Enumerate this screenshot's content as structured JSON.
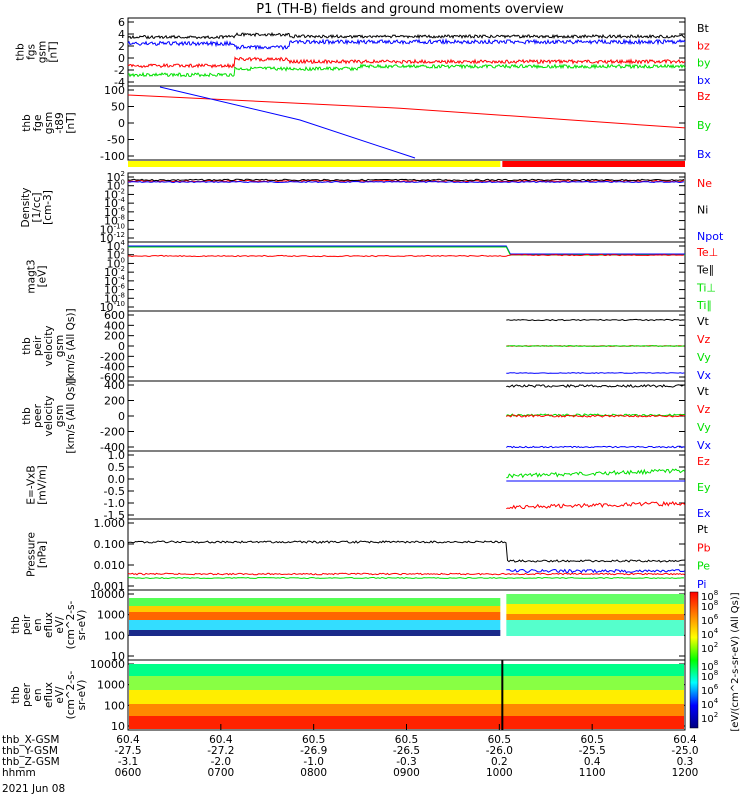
{
  "title": "P1 (TH-B) fields and ground moments overview",
  "date": "2021 Jun 08",
  "x_axis": {
    "ticks": [
      "0600",
      "0700",
      "0800",
      "0900",
      "1000",
      "1100",
      "1200"
    ],
    "rows": [
      {
        "label": "thb_X-GSM",
        "values": [
          "60.4",
          "60.4",
          "60.5",
          "60.5",
          "60.5",
          "60.5",
          "60.4"
        ]
      },
      {
        "label": "thb_Y-GSM",
        "values": [
          "-27.5",
          "-27.2",
          "-26.9",
          "-26.5",
          "-26.0",
          "-25.5",
          "-25.0"
        ]
      },
      {
        "label": "thb_Z-GSM",
        "values": [
          "-3.1",
          "-2.0",
          "-1.0",
          "-0.3",
          "0.2",
          "0.4",
          "0.3"
        ]
      },
      {
        "label": "hhmm",
        "values": [
          "0600",
          "0700",
          "0800",
          "0900",
          "1000",
          "1100",
          "1200"
        ]
      }
    ]
  },
  "colors": {
    "black": "#000000",
    "red": "#ff0000",
    "green": "#00e000",
    "blue": "#0000ff",
    "yellow": "#ffff00"
  },
  "panels": [
    {
      "id": "fgs",
      "ylabel": [
        "thb",
        "fgs",
        "gsm",
        "[nT]"
      ],
      "ticks": [
        "6",
        "4",
        "2",
        "0",
        "-2",
        "-4"
      ],
      "legend": [
        {
          "t": "Bt",
          "c": "black"
        },
        {
          "t": "bz",
          "c": "red"
        },
        {
          "t": "by",
          "c": "green"
        },
        {
          "t": "bx",
          "c": "blue"
        }
      ]
    },
    {
      "id": "fge",
      "ylabel": [
        "thb",
        "fge",
        "gsm",
        "-t89",
        "[nT]"
      ],
      "ticks": [
        "100",
        "50",
        "0",
        "-50",
        "-100"
      ],
      "legend": [
        {
          "t": "Bz",
          "c": "red"
        },
        {
          "t": "By",
          "c": "green"
        },
        {
          "t": "Bx",
          "c": "blue"
        }
      ]
    },
    {
      "id": "density",
      "ylabel": [
        "Density",
        "[1/cc]",
        "[cm-3]"
      ],
      "ticks": [
        "10^2",
        "10^0",
        "10^-2",
        "10^-4",
        "10^-6",
        "10^-8",
        "10^-10",
        "10^-12"
      ],
      "legend": [
        {
          "t": "Ne",
          "c": "red"
        },
        {
          "t": "Ni",
          "c": "black"
        },
        {
          "t": "Npot",
          "c": "blue"
        }
      ]
    },
    {
      "id": "temp",
      "ylabel": [
        "magt3",
        "[eV]"
      ],
      "ticks": [
        "10^4",
        "10^2",
        "10^0",
        "10^-2",
        "10^-4",
        "10^-6",
        "10^-8",
        "10^-10"
      ],
      "legend": [
        {
          "t": "Te⊥",
          "c": "red"
        },
        {
          "t": "Te∥",
          "c": "black"
        },
        {
          "t": "Ti⊥",
          "c": "green"
        },
        {
          "t": "Ti∥",
          "c": "green"
        }
      ]
    },
    {
      "id": "vi",
      "ylabel": [
        "thb",
        "peir",
        "velocity",
        "gsm",
        "[km/s (All Qs)]"
      ],
      "ticks": [
        "600",
        "400",
        "200",
        "0",
        "-200",
        "-400",
        "-600"
      ],
      "legend": [
        {
          "t": "Vt",
          "c": "black"
        },
        {
          "t": "Vz",
          "c": "red"
        },
        {
          "t": "Vy",
          "c": "green"
        },
        {
          "t": "Vx",
          "c": "blue"
        }
      ]
    },
    {
      "id": "ve",
      "ylabel": [
        "thb",
        "peer",
        "velocity",
        "gsm",
        "[km/s (All Qs)]"
      ],
      "ticks": [
        "400",
        "200",
        "0",
        "-200",
        "-400"
      ],
      "legend": [
        {
          "t": "Vt",
          "c": "black"
        },
        {
          "t": "Vz",
          "c": "red"
        },
        {
          "t": "Vy",
          "c": "green"
        },
        {
          "t": "Vx",
          "c": "blue"
        }
      ]
    },
    {
      "id": "efield",
      "ylabel": [
        "E=-VxB",
        "[mV/m]"
      ],
      "ticks": [
        "1.0",
        "0.5",
        "0.0",
        "-0.5",
        "-1.0",
        "-1.5"
      ],
      "legend": [
        {
          "t": "Ez",
          "c": "red"
        },
        {
          "t": "Ey",
          "c": "green"
        },
        {
          "t": "Ex",
          "c": "blue"
        }
      ]
    },
    {
      "id": "pressure",
      "ylabel": [
        "Pressure",
        "[nPa]"
      ],
      "ticks": [
        "1.000",
        "0.100",
        "0.010",
        "0.001"
      ],
      "legend": [
        {
          "t": "Pt",
          "c": "black"
        },
        {
          "t": "Pb",
          "c": "red"
        },
        {
          "t": "Pe",
          "c": "green"
        },
        {
          "t": "Pi",
          "c": "blue"
        }
      ]
    },
    {
      "id": "ispec",
      "ylabel": [
        "thb",
        "peir",
        "en",
        "eflux",
        "eV/",
        "(cm^2-s-",
        "sr-eV)"
      ],
      "ticks": [
        "10000",
        "1000",
        "100",
        "10"
      ],
      "legend": []
    },
    {
      "id": "espec",
      "ylabel": [
        "thb",
        "peer",
        "en",
        "eflux",
        "eV/",
        "(cm^2-s-",
        "sr-eV)"
      ],
      "ticks": [
        "10000",
        "1000",
        "100",
        "10"
      ],
      "legend": []
    }
  ],
  "colorbar": {
    "ion_ticks": [
      "10^8",
      "10^6",
      "10^4",
      "10^2"
    ],
    "ion_top": "10^8",
    "elec_ticks": [
      "10^8",
      "10^6",
      "10^4",
      "10^2"
    ],
    "elec_top": "10^8",
    "label": "[eV/(cm^2-s-sr-eV) (All Qs)]"
  },
  "chart_data": {
    "type": "line",
    "x_range": [
      "06:00",
      "12:00"
    ],
    "note_bar": [
      {
        "from": "06:00",
        "to": "10:00",
        "color": "yellow"
      },
      {
        "from": "10:00",
        "to": "12:00",
        "color": "red"
      }
    ],
    "series": [
      {
        "panel": "fgs",
        "name": "Bt",
        "values": [
          3.5,
          3.6,
          4.0,
          3.7,
          3.8,
          3.7,
          3.5
        ]
      },
      {
        "panel": "fgs",
        "name": "bz",
        "values": [
          -1.0,
          -0.7,
          0.5,
          -0.3,
          -0.4,
          -0.6,
          -0.8
        ]
      },
      {
        "panel": "fgs",
        "name": "by",
        "values": [
          -2.8,
          -2.3,
          -1.5,
          -1.6,
          -1.2,
          -1.3,
          -1.7
        ]
      },
      {
        "panel": "fgs",
        "name": "bx",
        "values": [
          2.5,
          3.0,
          2.2,
          2.6,
          2.7,
          2.8,
          2.9
        ]
      },
      {
        "panel": "fge",
        "name": "Bz",
        "values": [
          80,
          70,
          60,
          45,
          30,
          10,
          -10
        ]
      },
      {
        "panel": "fge",
        "name": "Bx",
        "values": [
          120,
          60,
          0,
          -60,
          -115
        ]
      },
      {
        "panel": "vi",
        "name": "Vt",
        "values": [
          460,
          450
        ]
      },
      {
        "panel": "vi",
        "name": "Vy",
        "values": [
          0,
          0
        ]
      },
      {
        "panel": "vi",
        "name": "Vx",
        "values": [
          -470,
          -470
        ]
      },
      {
        "panel": "ve",
        "name": "Vt",
        "values": [
          350,
          370
        ]
      },
      {
        "panel": "ve",
        "name": "Vz",
        "values": [
          0,
          0
        ]
      },
      {
        "panel": "ve",
        "name": "Vx",
        "values": [
          -330,
          -330
        ]
      },
      {
        "panel": "efield",
        "name": "Ey",
        "values": [
          0.3,
          0.35
        ]
      },
      {
        "panel": "efield",
        "name": "Ex",
        "values": [
          0.0,
          0.0
        ]
      },
      {
        "panel": "efield",
        "name": "Ez",
        "values": [
          -1.0,
          -0.8
        ]
      },
      {
        "panel": "pressure",
        "name": "Pt",
        "values": [
          0.15,
          0.12,
          0.13,
          0.12,
          0.02,
          0.02
        ]
      },
      {
        "panel": "pressure",
        "name": "Pb",
        "values": [
          0.005,
          0.004,
          0.005,
          0.005,
          0.005,
          0.005
        ]
      },
      {
        "panel": "pressure",
        "name": "Pe",
        "values": [
          0.004,
          0.003,
          0.003,
          0.003,
          0.003,
          0.004
        ]
      },
      {
        "panel": "pressure",
        "name": "Pi",
        "values": [
          0.01,
          0.008
        ]
      }
    ]
  }
}
